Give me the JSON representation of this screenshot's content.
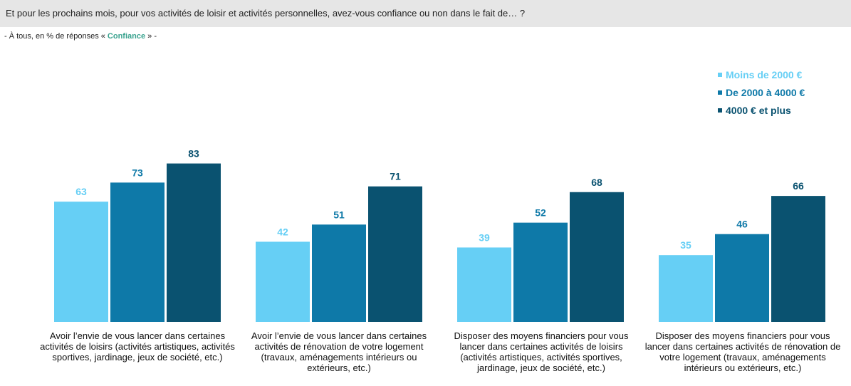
{
  "question": "Et pour les prochains mois, pour vos activités de loisir et activités personnelles, avez-vous confiance ou non dans le fait de… ?",
  "subtitle": {
    "prefix": "- À tous, en % de réponses « ",
    "highlight": "Confiance",
    "suffix": " » -"
  },
  "colors": {
    "series1": "#66cff5",
    "series2": "#0e79a8",
    "series3": "#0a5270",
    "highlight": "#3aa38f"
  },
  "chart_data": {
    "type": "bar",
    "title": "Et pour les prochains mois, pour vos activités de loisir et activités personnelles, avez-vous confiance ou non dans le fait de… ?",
    "categories": [
      "Avoir l’envie de vous lancer dans certaines activités de loisirs (activités artistiques, activités sportives, jardinage, jeux de société, etc.)",
      "Avoir l’envie de vous lancer dans certaines activités de rénovation de votre logement (travaux, aménagements intérieurs ou extérieurs, etc.)",
      "Disposer des moyens financiers pour vous lancer dans certaines activités de loisirs (activités artistiques, activités sportives, jardinage, jeux de société, etc.)",
      "Disposer des moyens financiers pour vous lancer dans certaines activités de rénovation de votre logement (travaux, aménagements intérieurs ou extérieurs, etc.)"
    ],
    "series": [
      {
        "name": "Moins de 2000 €",
        "values": [
          63,
          42,
          39,
          35
        ]
      },
      {
        "name": "De 2000 à 4000 €",
        "values": [
          73,
          51,
          52,
          46
        ]
      },
      {
        "name": "4000 € et plus",
        "values": [
          83,
          71,
          68,
          66
        ]
      }
    ],
    "ylim": [
      0,
      100
    ],
    "legend": "top-right",
    "grid": false
  }
}
